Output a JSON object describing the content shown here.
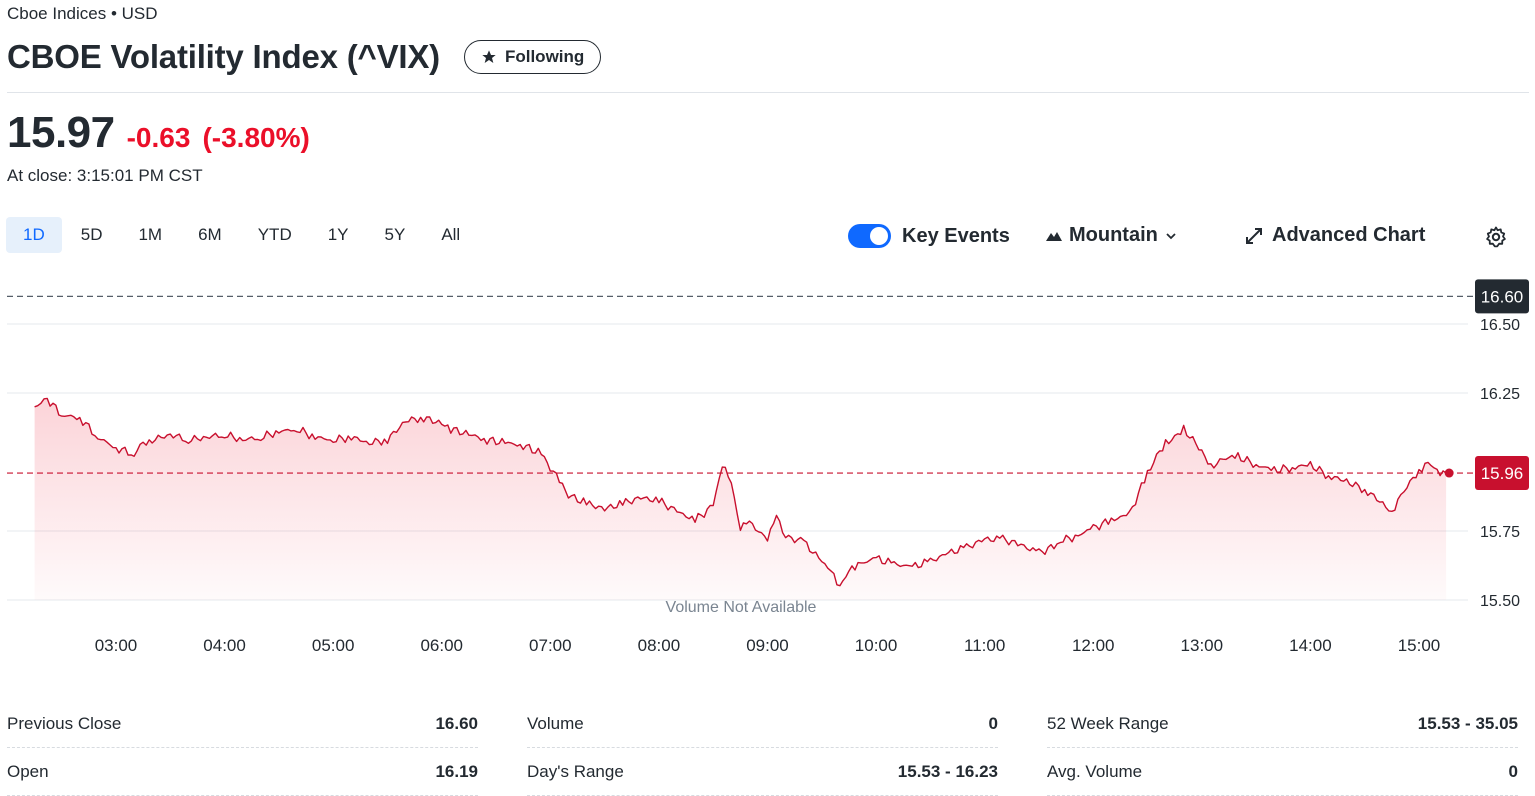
{
  "header": {
    "exchange": "Cboe Indices • USD",
    "title": "CBOE Volatility Index (^VIX)",
    "follow_label": "Following"
  },
  "quote": {
    "price": "15.97",
    "change": "-0.63",
    "change_pct": "(-3.80%)",
    "close_time": "At close: 3:15:01 PM CST"
  },
  "ranges": [
    "1D",
    "5D",
    "1M",
    "6M",
    "YTD",
    "1Y",
    "5Y",
    "All"
  ],
  "active_range": "1D",
  "toolbar": {
    "key_events_label": "Key Events",
    "key_events_on": true,
    "chart_type_label": "Mountain",
    "advanced_label": "Advanced Chart"
  },
  "colors": {
    "accent": "#0f69ff",
    "negative": "#eb0f29",
    "price_line": "#c8102e",
    "prev_close_tag": "#232a31"
  },
  "chart_data": {
    "type": "area",
    "y_ticks": [
      16.5,
      16.25,
      15.75,
      15.5
    ],
    "ylim": [
      15.5,
      16.6
    ],
    "x_ticks": [
      "03:00",
      "04:00",
      "05:00",
      "06:00",
      "07:00",
      "08:00",
      "09:00",
      "10:00",
      "11:00",
      "12:00",
      "13:00",
      "14:00",
      "15:00"
    ],
    "reference_lines": [
      {
        "label": "16.60",
        "value": 16.6,
        "kind": "previous-close"
      },
      {
        "label": "15.96",
        "value": 15.96,
        "kind": "current"
      }
    ],
    "volume_note": "Volume Not Available",
    "series": [
      {
        "x": [
          "02:15",
          "02:22",
          "02:30",
          "02:40",
          "02:50",
          "03:00",
          "03:10",
          "03:15",
          "03:20",
          "03:30",
          "03:40",
          "03:50",
          "04:00",
          "04:10",
          "04:20",
          "04:30",
          "04:40",
          "04:50",
          "05:00",
          "05:10",
          "05:20",
          "05:30",
          "05:40",
          "05:50",
          "06:00",
          "06:05",
          "06:15",
          "06:25",
          "06:35",
          "06:45",
          "06:55",
          "07:00",
          "07:05",
          "07:10",
          "07:20",
          "07:30",
          "07:40",
          "07:50",
          "08:00",
          "08:10",
          "08:20",
          "08:30",
          "08:35",
          "08:40",
          "08:45",
          "08:50",
          "09:00",
          "09:05",
          "09:10",
          "09:20",
          "09:30",
          "09:35",
          "09:40",
          "09:45",
          "09:50",
          "10:00",
          "10:10",
          "10:20",
          "10:30",
          "10:40",
          "10:50",
          "11:00",
          "11:10",
          "11:20",
          "11:30",
          "11:40",
          "11:45",
          "11:50",
          "12:00",
          "12:10",
          "12:20",
          "12:30",
          "12:35",
          "12:40",
          "12:45",
          "12:50",
          "13:00",
          "13:05",
          "13:10",
          "13:20",
          "13:30",
          "13:40",
          "13:50",
          "14:00",
          "14:10",
          "14:20",
          "14:30",
          "14:40",
          "14:45",
          "14:50",
          "15:00",
          "15:05",
          "15:10",
          "15:15"
        ],
        "y": [
          16.2,
          16.23,
          16.17,
          16.16,
          16.09,
          16.05,
          16.03,
          16.07,
          16.08,
          16.1,
          16.08,
          16.09,
          16.1,
          16.08,
          16.09,
          16.11,
          16.12,
          16.09,
          16.08,
          16.09,
          16.07,
          16.08,
          16.15,
          16.16,
          16.14,
          16.12,
          16.1,
          16.08,
          16.07,
          16.06,
          16.03,
          15.98,
          15.93,
          15.88,
          15.85,
          15.83,
          15.85,
          15.87,
          15.86,
          15.82,
          15.79,
          15.84,
          15.99,
          15.92,
          15.76,
          15.78,
          15.72,
          15.8,
          15.73,
          15.71,
          15.64,
          15.6,
          15.55,
          15.6,
          15.63,
          15.65,
          15.63,
          15.62,
          15.64,
          15.67,
          15.69,
          15.72,
          15.72,
          15.7,
          15.67,
          15.7,
          15.72,
          15.73,
          15.76,
          15.79,
          15.81,
          15.96,
          16.02,
          16.07,
          16.09,
          16.12,
          16.04,
          15.98,
          16.01,
          16.02,
          15.99,
          15.97,
          15.98,
          15.99,
          15.95,
          15.93,
          15.9,
          15.85,
          15.82,
          15.88,
          15.97,
          16.0,
          15.97,
          15.96
        ]
      }
    ]
  },
  "stats": [
    [
      {
        "label": "Previous Close",
        "value": "16.60"
      },
      {
        "label": "Open",
        "value": "16.19"
      }
    ],
    [
      {
        "label": "Volume",
        "value": "0"
      },
      {
        "label": "Day's Range",
        "value": "15.53 - 16.23"
      }
    ],
    [
      {
        "label": "52 Week Range",
        "value": "15.53 - 35.05"
      },
      {
        "label": "Avg. Volume",
        "value": "0"
      }
    ]
  ]
}
